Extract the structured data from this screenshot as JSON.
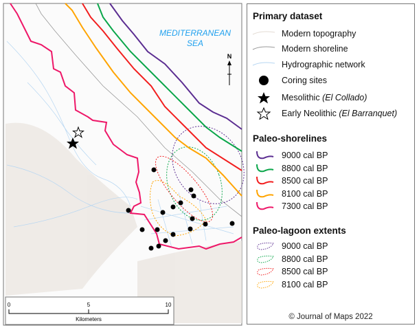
{
  "map": {
    "sea_label_1": "MEDITERRANEAN",
    "sea_label_2": "SEA",
    "north": "N",
    "scale": {
      "ticks": [
        "0",
        "5",
        "10"
      ],
      "unit": "Kilometers"
    },
    "colors": {
      "9000": "#5b2d91",
      "8800": "#0aa64a",
      "8500": "#f21e1e",
      "8100": "#ffa400",
      "7300": "#ee1768",
      "shoreline": "#999999",
      "hydro": "#a9d0f0",
      "topo": "#e9e4df",
      "sea_label": "#1fa0ee"
    }
  },
  "legend": {
    "primary_title": "Primary dataset",
    "primary": [
      {
        "icon": "topography-line",
        "label": "Modern topography"
      },
      {
        "icon": "shoreline-line",
        "label": "Modern shoreline"
      },
      {
        "icon": "hydro-line",
        "label": "Hydrographic network"
      },
      {
        "icon": "circle",
        "label": "Coring sites"
      },
      {
        "icon": "star-filled",
        "label": "Mesolithic",
        "italic": "(El Collado)"
      },
      {
        "icon": "star-outline",
        "label": "Early Neolithic",
        "italic": "(El Barranquet)"
      }
    ],
    "shore_title": "Paleo-shorelines",
    "shorelines": [
      "9000 cal BP",
      "8800 cal BP",
      "8500 cal BP",
      "8100 cal BP",
      "7300 cal BP"
    ],
    "lagoon_title": "Paleo-lagoon extents",
    "lagoons": [
      "9000 cal BP",
      "8800 cal BP",
      "8500 cal BP",
      "8100 cal BP"
    ],
    "copyright": "© Journal of Maps 2022"
  }
}
